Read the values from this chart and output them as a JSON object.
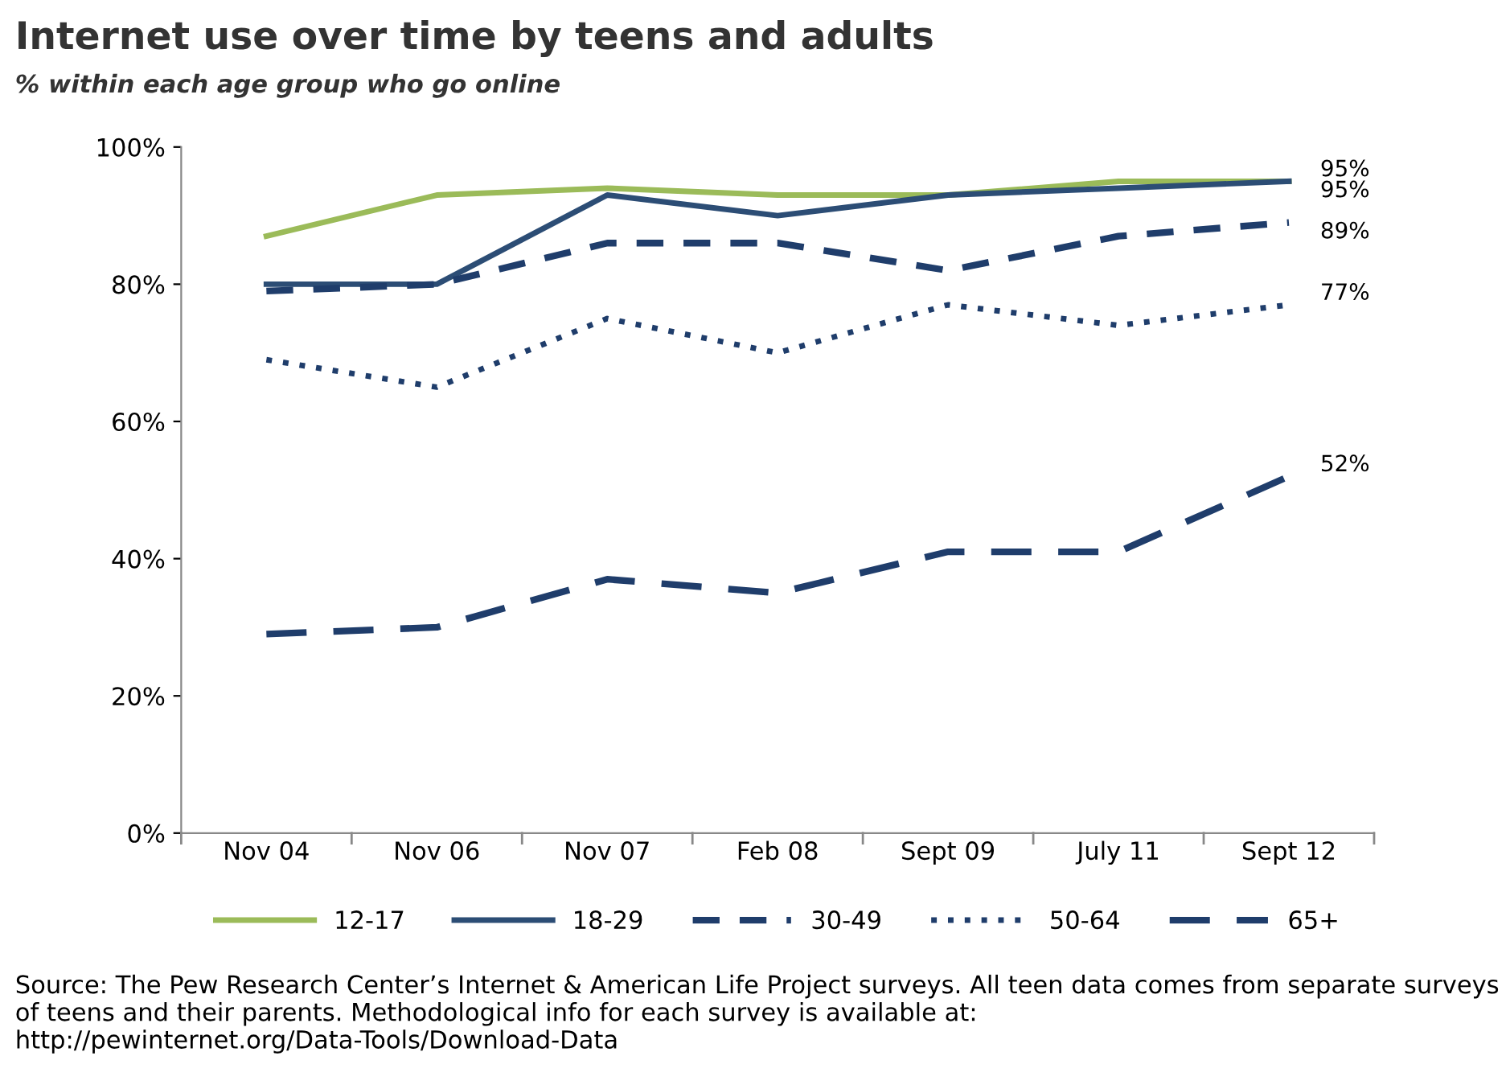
{
  "chart_data": {
    "type": "line",
    "title": "Internet use over time by teens and adults",
    "subtitle": "% within each age group who go online",
    "categories": [
      "Nov 04",
      "Nov 06",
      "Nov 07",
      "Feb 08",
      "Sept 09",
      "July 11",
      "Sept 12"
    ],
    "series": [
      {
        "name": "12-17",
        "color": "#9bbb59",
        "line_style": "solid",
        "values": [
          87,
          93,
          94,
          93,
          93,
          95,
          95
        ],
        "value_labels": [
          null,
          null,
          null,
          null,
          null,
          null,
          "95%"
        ]
      },
      {
        "name": "18-29",
        "color": "#2c4d75",
        "line_style": "solid",
        "values": [
          80,
          80,
          93,
          90,
          93,
          94,
          95
        ],
        "value_labels": [
          null,
          null,
          null,
          null,
          null,
          null,
          "95%"
        ]
      },
      {
        "name": "30-49",
        "color": "#1f3d6b",
        "line_style": "dashed",
        "values": [
          79,
          80,
          86,
          86,
          82,
          87,
          89
        ],
        "value_labels": [
          null,
          null,
          null,
          null,
          null,
          null,
          "89%"
        ]
      },
      {
        "name": "50-64",
        "color": "#1f3d6b",
        "line_style": "dotted",
        "values": [
          69,
          65,
          75,
          70,
          77,
          74,
          77
        ],
        "value_labels": [
          null,
          null,
          null,
          null,
          null,
          null,
          "77%"
        ]
      },
      {
        "name": "65+",
        "color": "#1f3d6b",
        "line_style": "dashed",
        "values": [
          29,
          30,
          37,
          35,
          41,
          41,
          52
        ],
        "value_labels": [
          null,
          null,
          null,
          null,
          null,
          null,
          "52%"
        ]
      }
    ],
    "ylim": [
      0,
      100
    ],
    "yticks": [
      {
        "value": 0,
        "label": "0%"
      },
      {
        "value": 20,
        "label": "20%"
      },
      {
        "value": 40,
        "label": "40%"
      },
      {
        "value": 60,
        "label": "60%"
      },
      {
        "value": 80,
        "label": "80%"
      },
      {
        "value": 100,
        "label": "100%"
      }
    ],
    "grid": false,
    "legend": "bottom",
    "annotations": [
      "Source: The Pew Research Center’s Internet & American Life Project surveys. All teen data comes from separate surveys of teens and their parents. Methodological info for each survey is available at: http://pewinternet.org/Data-Tools/Download-Data"
    ]
  }
}
